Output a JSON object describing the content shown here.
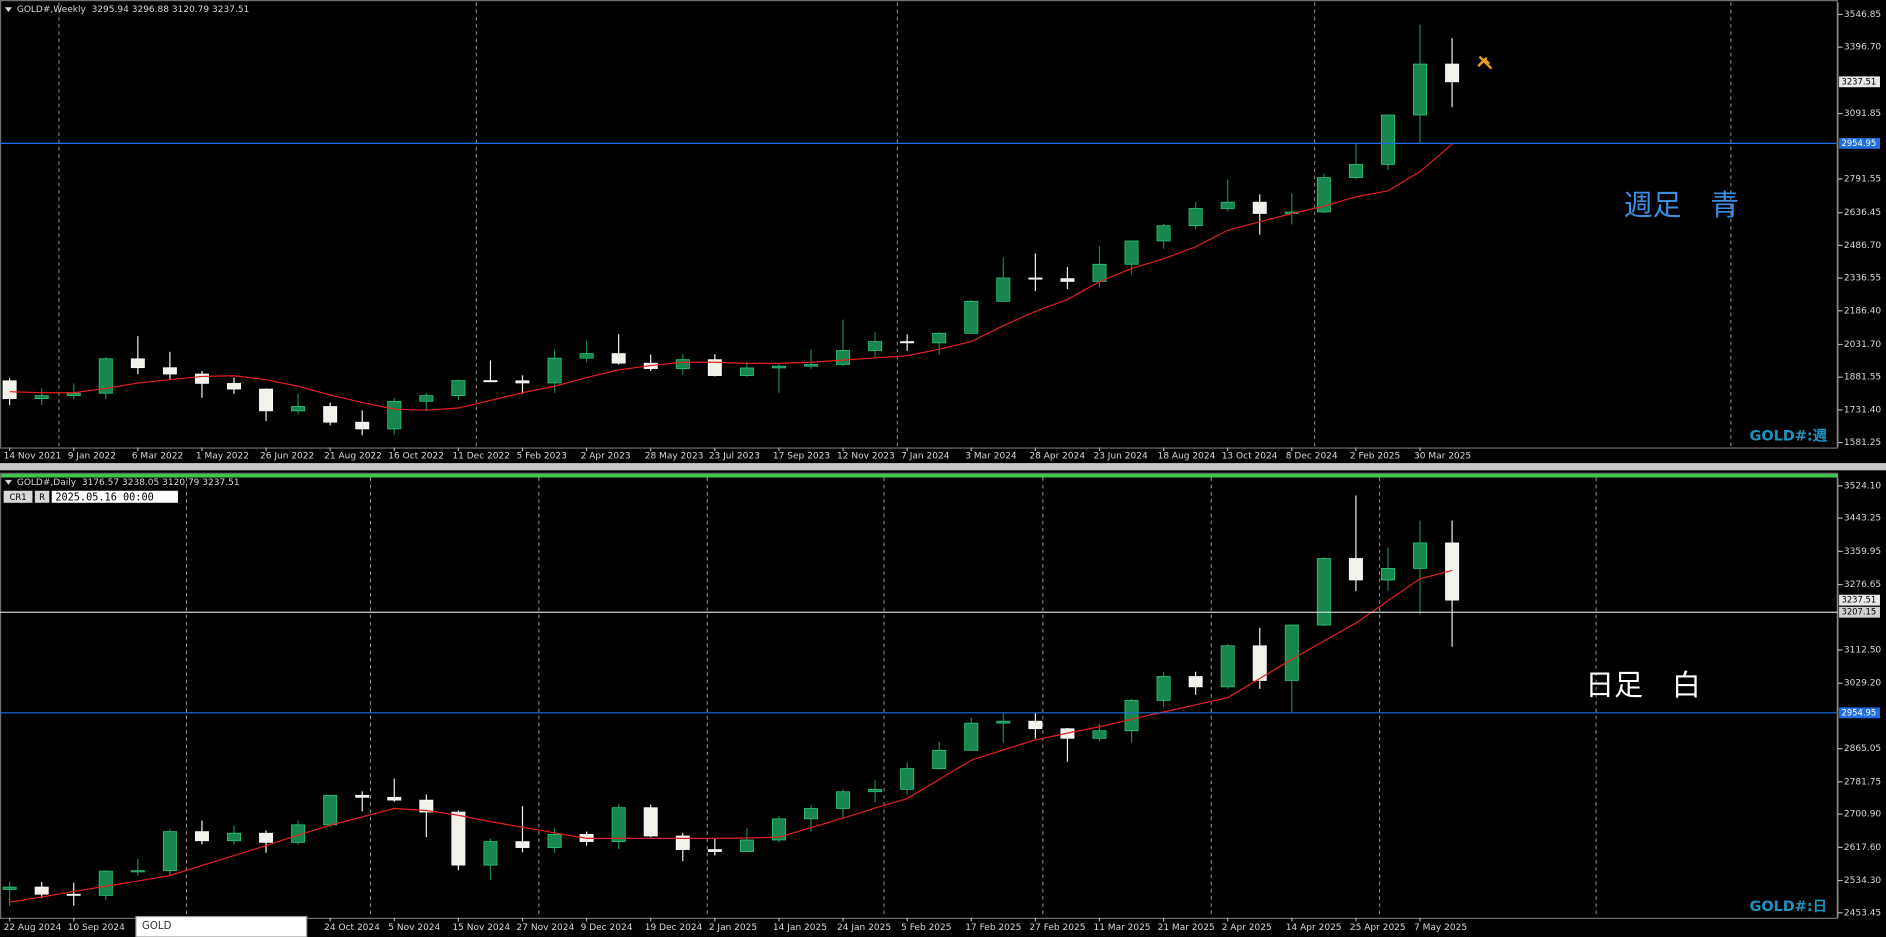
{
  "chart_data": [
    {
      "type": "candlestick",
      "header": "GOLD#,Weekly  3295.94 3296.88 3120.79 3237.51",
      "categories": [
        "14 Nov 2021",
        null,
        "9 Jan 2022",
        null,
        "6 Mar 2022",
        null,
        "1 May 2022",
        null,
        "26 Jun 2022",
        null,
        "21 Aug 2022",
        null,
        "16 Oct 2022",
        null,
        "11 Dec 2022",
        null,
        "5 Feb 2023",
        null,
        "2 Apr 2023",
        null,
        "28 May 2023",
        null,
        "23 Jul 2023",
        null,
        "17 Sep 2023",
        null,
        "12 Nov 2023",
        null,
        "7 Jan 2024",
        null,
        "3 Mar 2024",
        null,
        "28 Apr 2024",
        null,
        "23 Jun 2024",
        null,
        "18 Aug 2024",
        null,
        "13 Oct 2024",
        null,
        "8 Dec 2024",
        null,
        "2 Feb 2025",
        null,
        "30 Mar 2025",
        null
      ],
      "open": [
        1865,
        1783,
        1797,
        1808,
        1966,
        1925,
        1896,
        1853,
        1827,
        1727,
        1747,
        1675,
        1644,
        1771,
        1797,
        1866,
        1865,
        1855,
        1969,
        1990,
        1946,
        1921,
        1962,
        1889,
        1924,
        1932,
        1940,
        2004,
        2045,
        2039,
        2083,
        2230,
        2337,
        2334,
        2321,
        2400,
        2507,
        2577,
        2656,
        2685,
        2633,
        2640,
        2798,
        2858,
        3085,
        3319
      ],
      "high": [
        1877,
        1831,
        1853,
        1974,
        2070,
        1998,
        1910,
        1879,
        1830,
        1807,
        1765,
        1729,
        1786,
        1810,
        1870,
        1959,
        1890,
        2010,
        2048,
        2079,
        1985,
        1987,
        1987,
        1953,
        1947,
        2009,
        2146,
        2088,
        2078,
        2088,
        2236,
        2431,
        2450,
        2387,
        2483,
        2509,
        2586,
        2685,
        2790,
        2721,
        2726,
        2817,
        2956,
        3086,
        3500,
        3438
      ],
      "low": [
        1753,
        1753,
        1780,
        1780,
        1895,
        1872,
        1787,
        1805,
        1680,
        1711,
        1660,
        1615,
        1617,
        1727,
        1777,
        1861,
        1805,
        1810,
        1950,
        1940,
        1910,
        1893,
        1885,
        1884,
        1810,
        1920,
        1931,
        1973,
        2002,
        1984,
        2080,
        2228,
        2277,
        2286,
        2293,
        2353,
        2471,
        2560,
        2643,
        2536,
        2583,
        2635,
        2790,
        2832,
        2957,
        3120.79
      ],
      "close": [
        1783,
        1797,
        1808,
        1966,
        1925,
        1896,
        1853,
        1827,
        1727,
        1747,
        1675,
        1644,
        1771,
        1797,
        1866,
        1865,
        1855,
        1969,
        1990,
        1946,
        1921,
        1962,
        1889,
        1924,
        1932,
        1940,
        2004,
        2045,
        2039,
        2083,
        2230,
        2337,
        2334,
        2321,
        2400,
        2507,
        2577,
        2656,
        2685,
        2633,
        2640,
        2798,
        2858,
        3085,
        3319,
        3237.51
      ],
      "up_color": "#17874f",
      "down_color": "#f2f2ea",
      "ma": {
        "color": "#e3201c",
        "values": [
          1815,
          1810,
          1810,
          1830,
          1855,
          1870,
          1885,
          1888,
          1870,
          1840,
          1800,
          1765,
          1735,
          1730,
          1740,
          1775,
          1810,
          1840,
          1880,
          1915,
          1935,
          1950,
          1950,
          1945,
          1945,
          1950,
          1960,
          1970,
          1980,
          2010,
          2045,
          2118,
          2184,
          2238,
          2320,
          2381,
          2425,
          2480,
          2556,
          2595,
          2633,
          2666,
          2710,
          2737,
          2825,
          2951
        ]
      },
      "ylim": [
        1559,
        3602
      ],
      "yticks": [
        3546.85,
        {
          "value": 3396.7,
          "label": "3396.70"
        },
        3091.85,
        2791.55,
        2636.45,
        {
          "value": 2486.7,
          "label": "2486.70"
        },
        2336.55,
        {
          "value": 2186.4,
          "label": "2186.40"
        },
        {
          "value": 2031.7,
          "label": "2031.70"
        },
        1881.55,
        {
          "value": 1731.4,
          "label": "1731.40"
        },
        1581.25
      ],
      "hlines": [
        {
          "value": 2954.95,
          "color": "#1f6fe0"
        }
      ],
      "price_labels": [
        3237.51
      ],
      "annotation": "週足　青",
      "annotation_color": "#3a8ee0",
      "watermark": "GOLD#:週"
    },
    {
      "type": "candlestick",
      "header": "GOLD#,Daily  3176.57 3238.05 3120.79 3237.51",
      "categories": [
        "22 Aug 2024",
        null,
        "10 Sep 2024",
        null,
        null,
        null,
        null,
        null,
        null,
        null,
        "24 Oct 2024",
        null,
        "5 Nov 2024",
        null,
        "15 Nov 2024",
        null,
        "27 Nov 2024",
        null,
        "9 Dec 2024",
        null,
        "19 Dec 2024",
        null,
        "2 Jan 2025",
        null,
        "14 Jan 2025",
        null,
        "24 Jan 2025",
        null,
        "5 Feb 2025",
        null,
        "17 Feb 2025",
        null,
        "27 Feb 2025",
        null,
        "11 Mar 2025",
        null,
        "21 Mar 2025",
        null,
        "2 Apr 2025",
        null,
        "14 Apr 2025",
        null,
        "25 Apr 2025",
        null,
        "7 May 2025",
        null
      ],
      "open": [
        2512,
        2518,
        2500,
        2497,
        2558,
        2559,
        2657,
        2634,
        2653,
        2630,
        2674,
        2748,
        2743,
        2736,
        2706,
        2573,
        2632,
        2617,
        2650,
        2632,
        2717,
        2646,
        2612,
        2607,
        2636,
        2689,
        2715,
        2757,
        2763,
        2815,
        2861,
        2929,
        2934,
        2915,
        2891,
        2910,
        2986,
        3046,
        3020,
        3123,
        3036,
        3175,
        3342,
        3288,
        3317,
        3381
      ],
      "high": [
        2531,
        2531,
        2529,
        2560,
        2589,
        2664,
        2685,
        2673,
        2660,
        2685,
        2749,
        2758,
        2790,
        2750,
        2710,
        2640,
        2721,
        2665,
        2657,
        2726,
        2725,
        2654,
        2640,
        2665,
        2697,
        2724,
        2763,
        2786,
        2830,
        2882,
        2942,
        2955,
        2955,
        2917,
        2927,
        2990,
        3057,
        3058,
        3128,
        3168,
        3176,
        3345,
        3500,
        3370,
        3437,
        3437
      ],
      "low": [
        2470,
        2490,
        2471,
        2485,
        2546,
        2546,
        2625,
        2624,
        2604,
        2625,
        2668,
        2708,
        2732,
        2643,
        2560,
        2536,
        2605,
        2604,
        2622,
        2613,
        2643,
        2583,
        2597,
        2607,
        2630,
        2657,
        2689,
        2730,
        2750,
        2813,
        2860,
        2880,
        2890,
        2832,
        2883,
        2880,
        2970,
        3000,
        3015,
        3015,
        2957,
        3172,
        3260,
        3260,
        3202,
        3120.79
      ],
      "close": [
        2518,
        2500,
        2497,
        2558,
        2559,
        2657,
        2634,
        2653,
        2630,
        2674,
        2748,
        2743,
        2736,
        2706,
        2573,
        2632,
        2617,
        2650,
        2632,
        2717,
        2646,
        2612,
        2607,
        2636,
        2689,
        2715,
        2757,
        2763,
        2815,
        2861,
        2929,
        2934,
        2915,
        2891,
        2910,
        2986,
        3046,
        3020,
        3123,
        3036,
        3175,
        3342,
        3288,
        3317,
        3381,
        3237.51
      ],
      "up_color": "#17874f",
      "down_color": "#f2f2ea",
      "ma": {
        "color": "#e3201c",
        "values": [
          2480,
          2493,
          2507,
          2520,
          2533,
          2547,
          2572,
          2597,
          2622,
          2648,
          2673,
          2694,
          2715,
          2710,
          2698,
          2682,
          2668,
          2654,
          2640,
          2640,
          2640,
          2640,
          2640,
          2641,
          2643,
          2667,
          2691,
          2716,
          2740,
          2788,
          2836,
          2862,
          2887,
          2904,
          2920,
          2939,
          2957,
          2975,
          2993,
          3041,
          3089,
          3135,
          3180,
          3236,
          3291,
          3312
        ]
      },
      "ylim": [
        2441,
        3545
      ],
      "yticks": [
        {
          "value": 3524.1,
          "label": "3524.10"
        },
        3443.25,
        3359.95,
        3276.65,
        {
          "value": 3112.5,
          "label": "3112.50"
        },
        {
          "value": 3029.2,
          "label": "3029.20"
        },
        2865.05,
        2781.75,
        {
          "value": 2700.9,
          "label": "2700.90"
        },
        {
          "value": 2617.6,
          "label": "2617.60"
        },
        {
          "value": 2534.3,
          "label": "2534.30"
        },
        2453.45
      ],
      "hlines": [
        {
          "value": 2954.95,
          "color": "#1f6fe0"
        },
        {
          "value": 3207.15,
          "color": "#d0d0d0"
        }
      ],
      "price_labels": [
        3237.51
      ],
      "annotation": "日足　白",
      "annotation_color": "#ffffff",
      "watermark": "GOLD#:日"
    }
  ],
  "toolbar": {
    "cr": "CR1",
    "r": "R",
    "time": "2025.05.16 00:00"
  },
  "popup": "GOLD"
}
